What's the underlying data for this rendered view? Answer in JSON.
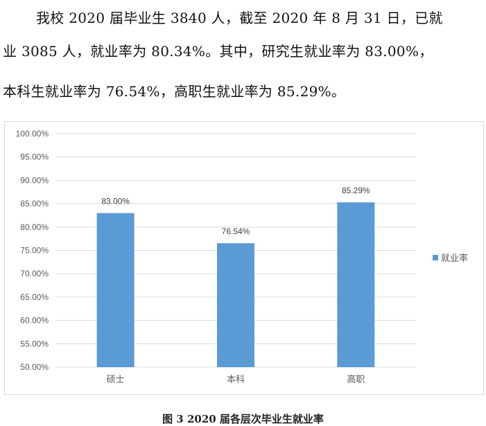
{
  "text": {
    "lines": [
      "我校 2020 届毕业生 3840 人，截至 2020 年 8 月 31 日，已就",
      "业 3085 人，就业率为 80.34%。其中，研究生就业率为 83.00%，",
      "本科生就业率为 76.54%，高职生就业率为 85.29%。"
    ]
  },
  "chart_data": {
    "type": "bar",
    "categories": [
      "硕士",
      "本科",
      "高职"
    ],
    "series": [
      {
        "name": "就业率",
        "values": [
          83.0,
          76.54,
          85.29
        ],
        "color": "#5b9bd5"
      }
    ],
    "data_labels": [
      "83.00%",
      "76.54%",
      "85.29%"
    ],
    "yticks": [
      "50.00%",
      "55.00%",
      "60.00%",
      "65.00%",
      "70.00%",
      "75.00%",
      "80.00%",
      "85.00%",
      "90.00%",
      "95.00%",
      "100.00%"
    ],
    "ylim": [
      50,
      100
    ],
    "grid": true,
    "legend": "right"
  },
  "caption": "图 3   2020 届各层次毕业生就业率"
}
